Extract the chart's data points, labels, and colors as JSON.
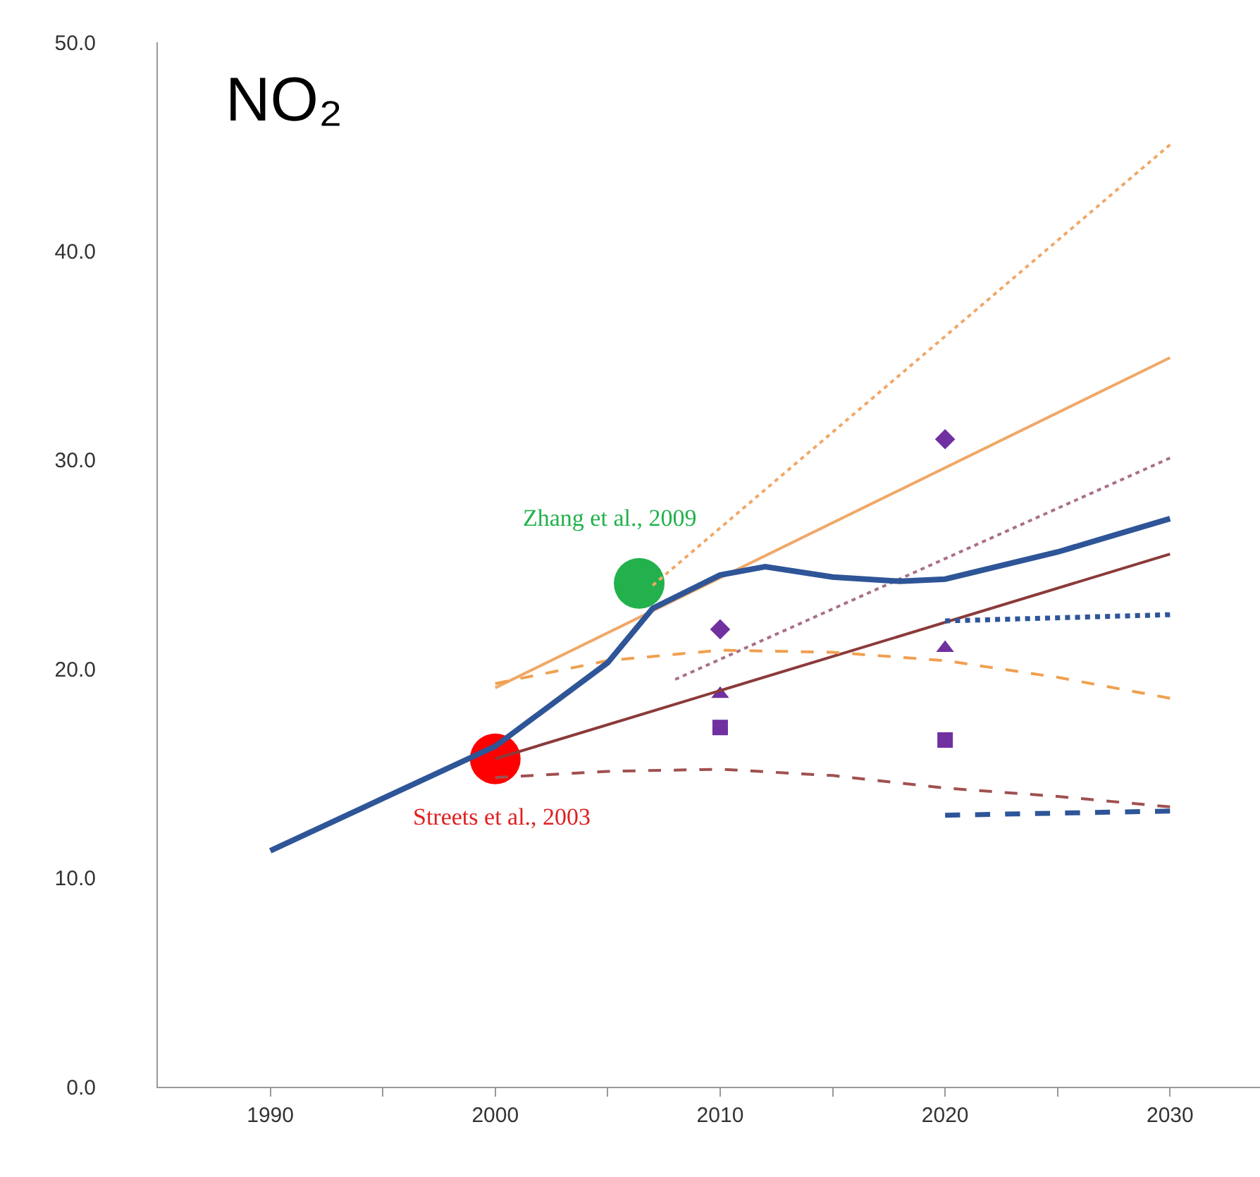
{
  "chart_data": {
    "type": "line",
    "title": "NO₂",
    "xlim": [
      1985,
      2034
    ],
    "ylim": [
      0,
      50
    ],
    "xticks": [
      1990,
      {
        "value": 1995,
        "label": null
      },
      2000,
      {
        "value": 2005,
        "label": null
      },
      2010,
      {
        "value": 2015,
        "label": null
      },
      2020,
      {
        "value": 2025,
        "label": null
      },
      2030
    ],
    "yticks": [
      {
        "value": 0,
        "label": "0.0"
      },
      {
        "value": 10,
        "label": "10.0"
      },
      {
        "value": 20,
        "label": "20.0"
      },
      {
        "value": 30,
        "label": "30.0"
      },
      {
        "value": 40,
        "label": "40.0"
      },
      {
        "value": 50,
        "label": "50.0"
      }
    ],
    "grid": false,
    "series": [
      {
        "type": "line",
        "color": "#f0a868",
        "line_style": "dotted",
        "x": [
          2007,
          2030
        ],
        "values": [
          24.0,
          45.1
        ]
      },
      {
        "type": "line",
        "color": "#f0a868",
        "line_style": "solid",
        "x": [
          2000,
          2030
        ],
        "values": [
          19.1,
          34.9
        ]
      },
      {
        "type": "line",
        "color": "#a8708a",
        "line_style": "dotted",
        "x": [
          2008,
          2030
        ],
        "values": [
          19.5,
          30.1
        ]
      },
      {
        "type": "line",
        "color": "#8b3a3a",
        "line_style": "solid",
        "x": [
          2000,
          2030
        ],
        "values": [
          15.7,
          25.5
        ]
      },
      {
        "type": "line",
        "color": "#f0a050",
        "line_style": "dashed",
        "x": [
          2000,
          2005,
          2010,
          2015,
          2020,
          2025,
          2030
        ],
        "values": [
          19.3,
          20.4,
          20.9,
          20.8,
          20.4,
          19.6,
          18.6
        ]
      },
      {
        "type": "line",
        "color": "#a05050",
        "line_style": "dashed",
        "x": [
          2000,
          2005,
          2010,
          2015,
          2020,
          2025,
          2030
        ],
        "values": [
          14.8,
          15.1,
          15.2,
          14.9,
          14.3,
          13.9,
          13.4
        ]
      },
      {
        "type": "line",
        "color": "#2e5597",
        "line_style": "dotted",
        "x": [
          2020,
          2030
        ],
        "values": [
          22.3,
          22.6
        ]
      },
      {
        "type": "line",
        "color": "#2e5597",
        "line_style": "dashed",
        "x": [
          2020,
          2030
        ],
        "values": [
          13.0,
          13.2
        ]
      },
      {
        "type": "line",
        "color": "#2e5597",
        "line_style": "solid",
        "x": [
          1990,
          1995,
          2000,
          2005,
          2007,
          2010,
          2012,
          2015,
          2018,
          2020,
          2025,
          2030
        ],
        "values": [
          11.3,
          13.8,
          16.3,
          20.3,
          22.9,
          24.5,
          24.9,
          24.4,
          24.2,
          24.3,
          25.6,
          27.2
        ]
      },
      {
        "type": "scatter",
        "marker": "diamond",
        "color": "#7030a0",
        "x": [
          2010,
          2020
        ],
        "values": [
          21.9,
          31.0
        ]
      },
      {
        "type": "scatter",
        "marker": "triangle",
        "color": "#7030a0",
        "x": [
          2010,
          2020
        ],
        "values": [
          18.8,
          21.0
        ]
      },
      {
        "type": "scatter",
        "marker": "square",
        "color": "#7030a0",
        "x": [
          2010,
          2020
        ],
        "values": [
          17.2,
          16.6
        ]
      },
      {
        "type": "scatter",
        "marker": "circle",
        "color": "#ff0000",
        "x": [
          2000
        ],
        "values": [
          15.7
        ]
      },
      {
        "type": "scatter",
        "marker": "circle",
        "color": "#22b14c",
        "x": [
          2006.4
        ],
        "values": [
          24.1
        ]
      }
    ],
    "annotations": [
      "Zhang et al., 2009",
      "Streets et al., 2003"
    ]
  }
}
